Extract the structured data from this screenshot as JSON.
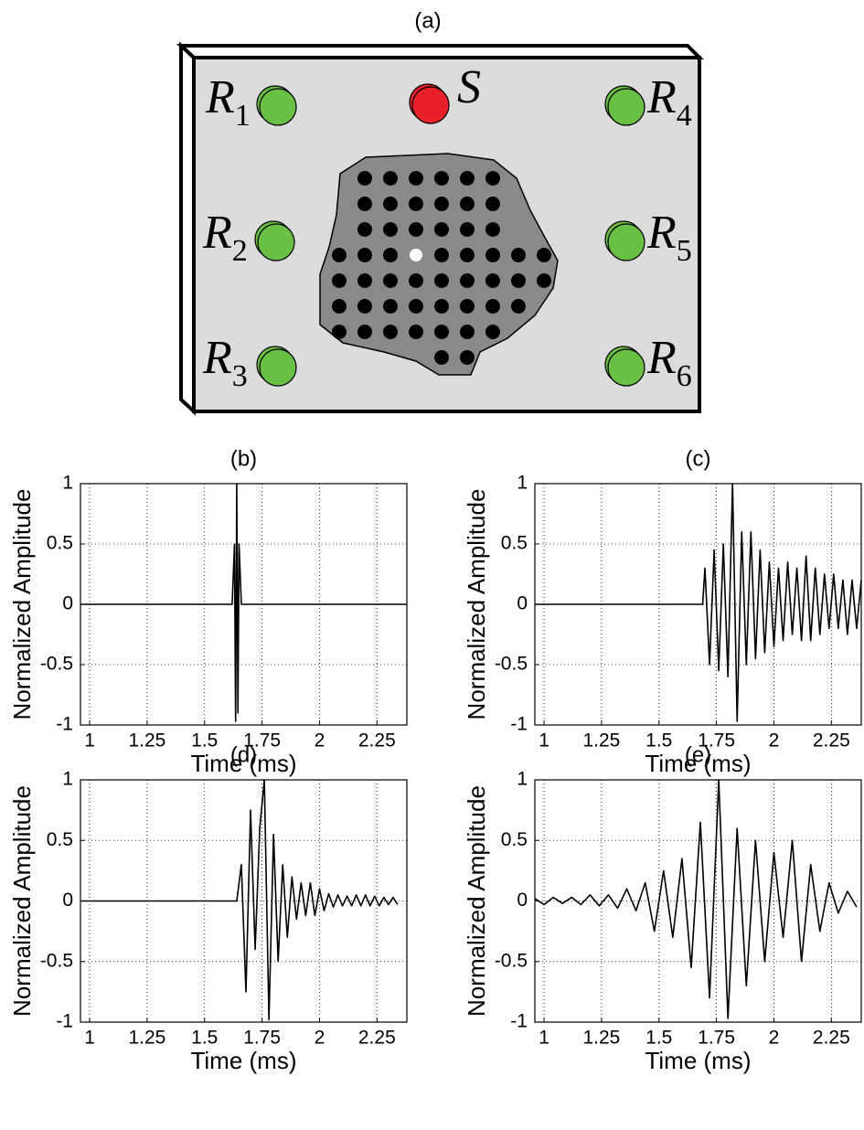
{
  "diagram": {
    "title": "(a)",
    "source": {
      "label": "S"
    },
    "receivers": [
      {
        "letter": "R",
        "sub": "1"
      },
      {
        "letter": "R",
        "sub": "2"
      },
      {
        "letter": "R",
        "sub": "3"
      },
      {
        "letter": "R",
        "sub": "4"
      },
      {
        "letter": "R",
        "sub": "5"
      },
      {
        "letter": "R",
        "sub": "6"
      }
    ]
  },
  "chart_data": [
    {
      "type": "line",
      "title": "(b)",
      "xlabel": "Time (ms)",
      "ylabel": "Normalized Amplitude",
      "color": "#000000",
      "grid": true,
      "xlim": [
        0.96,
        2.38
      ],
      "ylim": [
        -1,
        1
      ],
      "xticks": [
        1,
        1.25,
        1.5,
        1.75,
        2,
        2.25
      ],
      "yticks": [
        -1,
        -0.5,
        0,
        0.5,
        1
      ],
      "x": [
        0.96,
        1.62,
        1.63,
        1.635,
        1.64,
        1.645,
        1.65,
        1.66,
        2.38
      ],
      "values": [
        0,
        0,
        0.5,
        -0.97,
        1,
        -0.9,
        0.5,
        0,
        0
      ]
    },
    {
      "type": "line",
      "title": "(c)",
      "xlabel": "Time (ms)",
      "ylabel": "Normalized Amplitude",
      "color": "#000000",
      "grid": true,
      "xlim": [
        0.96,
        2.38
      ],
      "ylim": [
        -1,
        1
      ],
      "xticks": [
        1,
        1.25,
        1.5,
        1.75,
        2,
        2.25
      ],
      "yticks": [
        -1,
        -0.5,
        0,
        0.5,
        1
      ],
      "x": [
        0.96,
        1.69,
        1.7,
        1.72,
        1.74,
        1.76,
        1.78,
        1.8,
        1.82,
        1.84,
        1.86,
        1.88,
        1.9,
        1.92,
        1.94,
        1.96,
        1.98,
        2.0,
        2.02,
        2.04,
        2.06,
        2.08,
        2.1,
        2.12,
        2.14,
        2.16,
        2.18,
        2.2,
        2.22,
        2.24,
        2.26,
        2.28,
        2.3,
        2.32,
        2.34,
        2.36,
        2.38
      ],
      "values": [
        0,
        0,
        0.3,
        -0.5,
        0.45,
        -0.55,
        0.5,
        -0.6,
        1.0,
        -0.97,
        0.6,
        -0.5,
        0.6,
        -0.45,
        0.45,
        -0.4,
        0.35,
        -0.35,
        0.3,
        -0.3,
        0.35,
        -0.25,
        0.3,
        -0.3,
        0.4,
        -0.3,
        0.3,
        -0.25,
        0.25,
        -0.2,
        0.25,
        -0.2,
        0.2,
        -0.25,
        0.2,
        -0.2,
        0.2
      ]
    },
    {
      "type": "line",
      "title": "(d)",
      "xlabel": "Time (ms)",
      "ylabel": "Normalized Amplitude",
      "color": "#000000",
      "grid": true,
      "xlim": [
        0.96,
        2.38
      ],
      "ylim": [
        -1,
        1
      ],
      "xticks": [
        1,
        1.25,
        1.5,
        1.75,
        2,
        2.25
      ],
      "yticks": [
        -1,
        -0.5,
        0,
        0.5,
        1
      ],
      "x": [
        0.96,
        1.64,
        1.66,
        1.68,
        1.7,
        1.72,
        1.74,
        1.76,
        1.78,
        1.8,
        1.82,
        1.84,
        1.86,
        1.88,
        1.9,
        1.92,
        1.94,
        1.96,
        1.98,
        2.0,
        2.02,
        2.04,
        2.06,
        2.08,
        2.1,
        2.12,
        2.14,
        2.16,
        2.18,
        2.2,
        2.22,
        2.24,
        2.26,
        2.28,
        2.3,
        2.32,
        2.34
      ],
      "values": [
        0,
        0,
        0.3,
        -0.75,
        0.75,
        -0.4,
        0.6,
        1.0,
        -0.98,
        0.55,
        -0.5,
        0.3,
        -0.3,
        0.2,
        -0.15,
        0.15,
        -0.12,
        0.15,
        -0.12,
        0.1,
        -0.08,
        0.06,
        -0.05,
        0.05,
        -0.04,
        0.04,
        -0.04,
        0.05,
        -0.04,
        0.05,
        -0.04,
        0.04,
        -0.04,
        0.03,
        -0.03,
        0.03,
        -0.03
      ]
    },
    {
      "type": "line",
      "title": "(e)",
      "xlabel": "Time (ms)",
      "ylabel": "Normalized Amplitude",
      "color": "#000000",
      "grid": true,
      "xlim": [
        0.96,
        2.38
      ],
      "ylim": [
        -1,
        1
      ],
      "xticks": [
        1,
        1.25,
        1.5,
        1.75,
        2,
        2.25
      ],
      "yticks": [
        -1,
        -0.5,
        0,
        0.5,
        1
      ],
      "x": [
        0.96,
        1.0,
        1.04,
        1.08,
        1.12,
        1.16,
        1.2,
        1.24,
        1.28,
        1.32,
        1.36,
        1.4,
        1.44,
        1.48,
        1.52,
        1.56,
        1.6,
        1.64,
        1.68,
        1.72,
        1.76,
        1.8,
        1.84,
        1.88,
        1.92,
        1.96,
        2.0,
        2.04,
        2.08,
        2.12,
        2.16,
        2.2,
        2.24,
        2.28,
        2.32,
        2.36
      ],
      "values": [
        0.02,
        -0.03,
        0.03,
        -0.02,
        0.03,
        -0.03,
        0.05,
        -0.04,
        0.05,
        -0.06,
        0.1,
        -0.08,
        0.15,
        -0.25,
        0.25,
        -0.3,
        0.35,
        -0.55,
        0.65,
        -0.8,
        1.0,
        -0.97,
        0.6,
        -0.7,
        0.5,
        -0.5,
        0.4,
        -0.3,
        0.5,
        -0.5,
        0.3,
        -0.25,
        0.15,
        -0.1,
        0.08,
        -0.05
      ]
    }
  ]
}
